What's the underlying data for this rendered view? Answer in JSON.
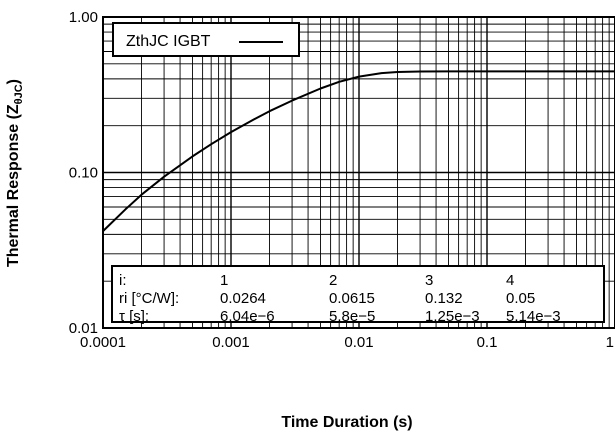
{
  "chart_data": {
    "type": "line",
    "title": "",
    "xlabel": "Time Duration (s)",
    "ylabel": "Thermal Response (Z",
    "ylabel_sub": "θJC",
    "ylabel_close": ")",
    "x_scale": "log",
    "y_scale": "log",
    "xlim": [
      0.0001,
      1
    ],
    "ylim": [
      0.01,
      1
    ],
    "grid": true,
    "x_ticks": [
      {
        "value": 0.0001,
        "label": "0.0001"
      },
      {
        "value": 0.001,
        "label": "0.001"
      },
      {
        "value": 0.01,
        "label": "0.01"
      },
      {
        "value": 0.1,
        "label": "0.1"
      },
      {
        "value": 1,
        "label": "1"
      }
    ],
    "y_ticks": [
      {
        "value": 0.01,
        "label": "0.01"
      },
      {
        "value": 0.1,
        "label": "0.10"
      },
      {
        "value": 1,
        "label": "1.00"
      }
    ],
    "legend": {
      "placement": "top-left",
      "entries": [
        "ZthJC IGBT"
      ]
    },
    "series": [
      {
        "name": "ZthJC IGBT",
        "color": "#000000",
        "x": [
          0.0001,
          0.00015,
          0.0002,
          0.0003,
          0.0005,
          0.0007,
          0.001,
          0.0015,
          0.002,
          0.003,
          0.005,
          0.007,
          0.01,
          0.015,
          0.02,
          0.03,
          0.05,
          0.1,
          0.2,
          0.5,
          1
        ],
        "y": [
          0.042,
          0.058,
          0.072,
          0.094,
          0.127,
          0.152,
          0.182,
          0.219,
          0.248,
          0.29,
          0.347,
          0.383,
          0.414,
          0.436,
          0.443,
          0.446,
          0.447,
          0.447,
          0.447,
          0.447,
          0.447
        ]
      }
    ],
    "table": {
      "header": [
        "i:",
        "1",
        "2",
        "3",
        "4"
      ],
      "rows": [
        [
          "ri [°C/W]:",
          "0.0264",
          "0.0615",
          "0.132",
          "0.05"
        ],
        [
          "τ [s]:",
          "6.04e−6",
          "5.8e−5",
          "1.25e−3",
          "5.14e−3"
        ]
      ]
    }
  }
}
